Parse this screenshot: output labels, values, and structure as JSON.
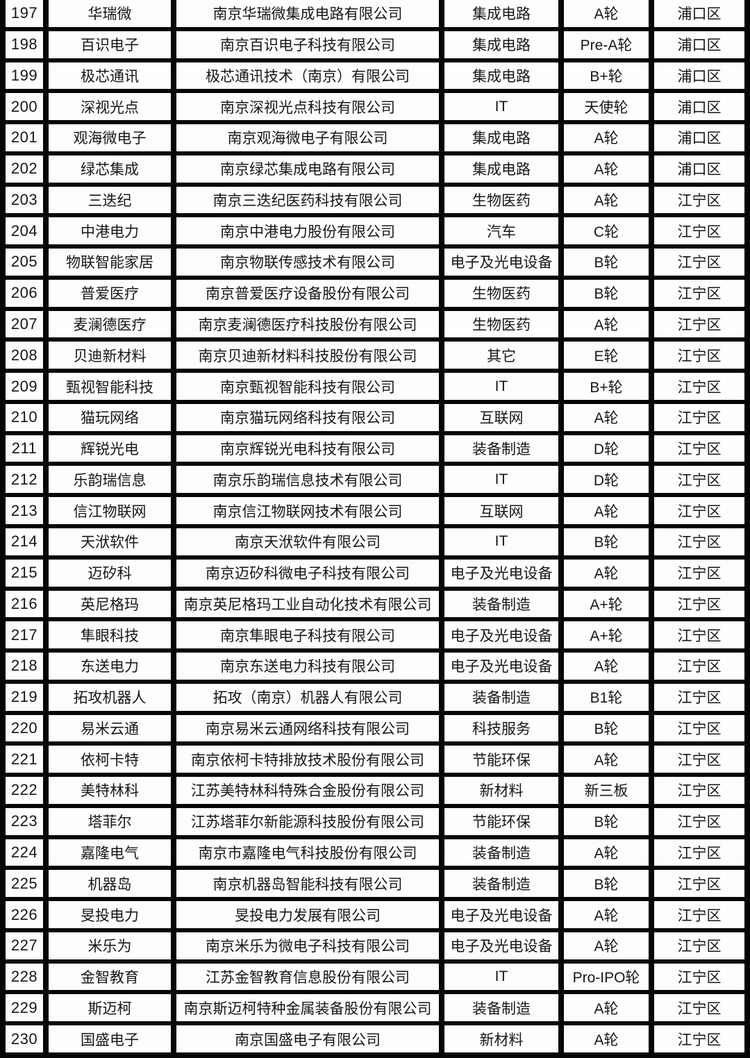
{
  "table": {
    "columns": [
      "no",
      "short_name",
      "company",
      "industry",
      "round",
      "district"
    ],
    "rows": [
      {
        "no": "197",
        "short_name": "华瑞微",
        "company": "南京华瑞微集成电路有限公司",
        "industry": "集成电路",
        "round": "A轮",
        "district": "浦口区"
      },
      {
        "no": "198",
        "short_name": "百识电子",
        "company": "南京百识电子科技有限公司",
        "industry": "集成电路",
        "round": "Pre-A轮",
        "district": "浦口区"
      },
      {
        "no": "199",
        "short_name": "极芯通讯",
        "company": "极芯通讯技术（南京）有限公司",
        "industry": "集成电路",
        "round": "B+轮",
        "district": "浦口区"
      },
      {
        "no": "200",
        "short_name": "深视光点",
        "company": "南京深视光点科技有限公司",
        "industry": "IT",
        "round": "天使轮",
        "district": "浦口区"
      },
      {
        "no": "201",
        "short_name": "观海微电子",
        "company": "南京观海微电子有限公司",
        "industry": "集成电路",
        "round": "A轮",
        "district": "浦口区"
      },
      {
        "no": "202",
        "short_name": "绿芯集成",
        "company": "南京绿芯集成电路有限公司",
        "industry": "集成电路",
        "round": "A轮",
        "district": "浦口区"
      },
      {
        "no": "203",
        "short_name": "三迭纪",
        "company": "南京三迭纪医药科技有限公司",
        "industry": "生物医药",
        "round": "A轮",
        "district": "江宁区"
      },
      {
        "no": "204",
        "short_name": "中港电力",
        "company": "南京中港电力股份有限公司",
        "industry": "汽车",
        "round": "C轮",
        "district": "江宁区"
      },
      {
        "no": "205",
        "short_name": "物联智能家居",
        "company": "南京物联传感技术有限公司",
        "industry": "电子及光电设备",
        "round": "B轮",
        "district": "江宁区"
      },
      {
        "no": "206",
        "short_name": "普爱医疗",
        "company": "南京普爱医疗设备股份有限公司",
        "industry": "生物医药",
        "round": "B轮",
        "district": "江宁区"
      },
      {
        "no": "207",
        "short_name": "麦澜德医疗",
        "company": "南京麦澜德医疗科技股份有限公司",
        "industry": "生物医药",
        "round": "A轮",
        "district": "江宁区"
      },
      {
        "no": "208",
        "short_name": "贝迪新材料",
        "company": "南京贝迪新材料科技股份有限公司",
        "industry": "其它",
        "round": "E轮",
        "district": "江宁区"
      },
      {
        "no": "209",
        "short_name": "甄视智能科技",
        "company": "南京甄视智能科技有限公司",
        "industry": "IT",
        "round": "B+轮",
        "district": "江宁区"
      },
      {
        "no": "210",
        "short_name": "猫玩网络",
        "company": "南京猫玩网络科技有限公司",
        "industry": "互联网",
        "round": "A轮",
        "district": "江宁区"
      },
      {
        "no": "211",
        "short_name": "辉锐光电",
        "company": "南京辉锐光电科技有限公司",
        "industry": "装备制造",
        "round": "D轮",
        "district": "江宁区"
      },
      {
        "no": "212",
        "short_name": "乐韵瑞信息",
        "company": "南京乐韵瑞信息技术有限公司",
        "industry": "IT",
        "round": "D轮",
        "district": "江宁区"
      },
      {
        "no": "213",
        "short_name": "信江物联网",
        "company": "南京信江物联网技术有限公司",
        "industry": "互联网",
        "round": "A轮",
        "district": "江宁区"
      },
      {
        "no": "214",
        "short_name": "天洑软件",
        "company": "南京天洑软件有限公司",
        "industry": "IT",
        "round": "B轮",
        "district": "江宁区"
      },
      {
        "no": "215",
        "short_name": "迈矽科",
        "company": "南京迈矽科微电子科技有限公司",
        "industry": "电子及光电设备",
        "round": "A轮",
        "district": "江宁区"
      },
      {
        "no": "216",
        "short_name": "英尼格玛",
        "company": "南京英尼格玛工业自动化技术有限公司",
        "industry": "装备制造",
        "round": "A+轮",
        "district": "江宁区"
      },
      {
        "no": "217",
        "short_name": "隼眼科技",
        "company": "南京隼眼电子科技有限公司",
        "industry": "电子及光电设备",
        "round": "A+轮",
        "district": "江宁区"
      },
      {
        "no": "218",
        "short_name": "东送电力",
        "company": "南京东送电力科技有限公司",
        "industry": "电子及光电设备",
        "round": "A轮",
        "district": "江宁区"
      },
      {
        "no": "219",
        "short_name": "拓攻机器人",
        "company": "拓攻（南京）机器人有限公司",
        "industry": "装备制造",
        "round": "B1轮",
        "district": "江宁区"
      },
      {
        "no": "220",
        "short_name": "易米云通",
        "company": "南京易米云通网络科技有限公司",
        "industry": "科技服务",
        "round": "B轮",
        "district": "江宁区"
      },
      {
        "no": "221",
        "short_name": "依柯卡特",
        "company": "南京依柯卡特排放技术股份有限公司",
        "industry": "节能环保",
        "round": "A轮",
        "district": "江宁区"
      },
      {
        "no": "222",
        "short_name": "美特林科",
        "company": "江苏美特林科特殊合金股份有限公司",
        "industry": "新材料",
        "round": "新三板",
        "district": "江宁区"
      },
      {
        "no": "223",
        "short_name": "塔菲尔",
        "company": "江苏塔菲尔新能源科技股份有限公司",
        "industry": "节能环保",
        "round": "B轮",
        "district": "江宁区"
      },
      {
        "no": "224",
        "short_name": "嘉隆电气",
        "company": "南京市嘉隆电气科技股份有限公司",
        "industry": "装备制造",
        "round": "A轮",
        "district": "江宁区"
      },
      {
        "no": "225",
        "short_name": "机器岛",
        "company": "南京机器岛智能科技有限公司",
        "industry": "装备制造",
        "round": "B轮",
        "district": "江宁区"
      },
      {
        "no": "226",
        "short_name": "旻投电力",
        "company": "旻投电力发展有限公司",
        "industry": "电子及光电设备",
        "round": "A轮",
        "district": "江宁区"
      },
      {
        "no": "227",
        "short_name": "米乐为",
        "company": "南京米乐为微电子科技有限公司",
        "industry": "电子及光电设备",
        "round": "A轮",
        "district": "江宁区"
      },
      {
        "no": "228",
        "short_name": "金智教育",
        "company": "江苏金智教育信息股份有限公司",
        "industry": "IT",
        "round": "Pro-IPO轮",
        "district": "江宁区"
      },
      {
        "no": "229",
        "short_name": "斯迈柯",
        "company": "南京斯迈柯特种金属装备股份有限公司",
        "industry": "装备制造",
        "round": "A轮",
        "district": "江宁区"
      },
      {
        "no": "230",
        "short_name": "国盛电子",
        "company": "南京国盛电子有限公司",
        "industry": "新材料",
        "round": "A轮",
        "district": "江宁区"
      }
    ]
  },
  "colors": {
    "grid_border": "#060606",
    "cell_background": "#fdfdfd",
    "text": "#161616"
  }
}
